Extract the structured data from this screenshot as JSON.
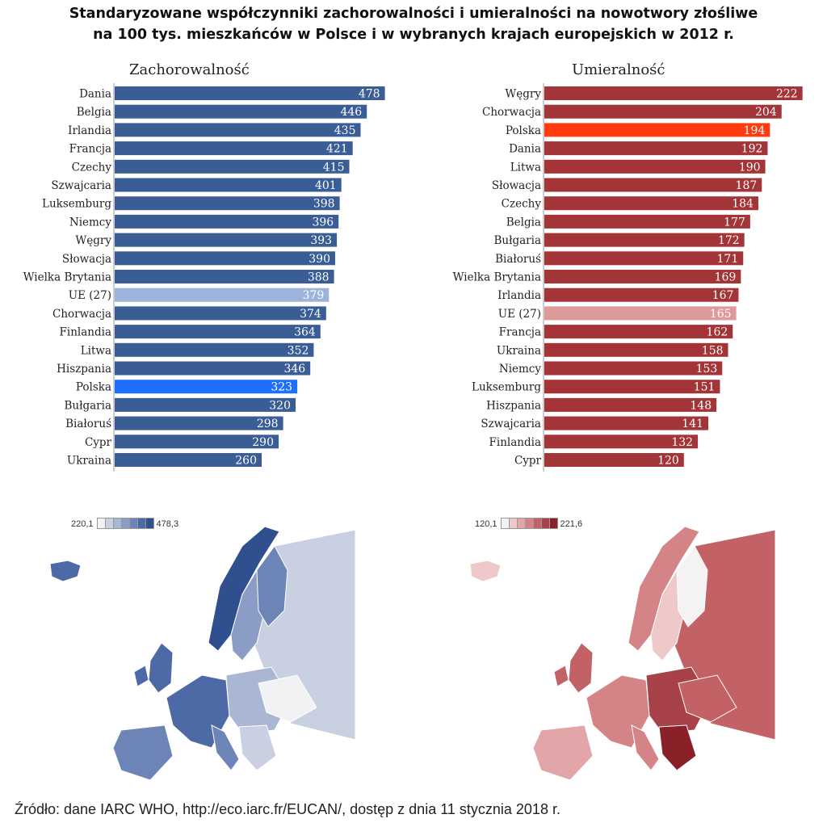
{
  "title": {
    "line1": "Standaryzowane  współczynniki zachorowalności i umieralności na nowotwory złośliwe",
    "line2": "na 100 tys. mieszkańców w Polsce  i w wybranych krajach europejskich w 2012 r."
  },
  "colors": {
    "incidence_bar": "#3a5d96",
    "incidence_highlight_pl": "#1f6fff",
    "incidence_highlight_eu": "#9db4da",
    "mortality_bar": "#a33538",
    "mortality_highlight_pl": "#ff3b0f",
    "mortality_highlight_eu": "#dd9a9b"
  },
  "chart_data": [
    {
      "type": "bar",
      "orientation": "horizontal",
      "title": "Zachorowalność",
      "categories": [
        "Dania",
        "Belgia",
        "Irlandia",
        "Francja",
        "Czechy",
        "Szwajcaria",
        "Luksemburg",
        "Niemcy",
        "Węgry",
        "Słowacja",
        "Wielka Brytania",
        "UE (27)",
        "Chorwacja",
        "Finlandia",
        "Litwa",
        "Hiszpania",
        "Polska",
        "Bułgaria",
        "Białoruś",
        "Cypr",
        "Ukraina"
      ],
      "values": [
        478,
        446,
        435,
        421,
        415,
        401,
        398,
        396,
        393,
        390,
        388,
        379,
        374,
        364,
        352,
        346,
        323,
        320,
        298,
        290,
        260
      ],
      "highlight": {
        "Polska": "incidence_highlight_pl",
        "UE (27)": "incidence_highlight_eu"
      },
      "data_labels": true
    },
    {
      "type": "bar",
      "orientation": "horizontal",
      "title": "Umieralność",
      "categories": [
        "Węgry",
        "Chorwacja",
        "Polska",
        "Dania",
        "Litwa",
        "Słowacja",
        "Czechy",
        "Belgia",
        "Bułgaria",
        "Białoruś",
        "Wielka Brytania",
        "Irlandia",
        "UE (27)",
        "Francja",
        "Ukraina",
        "Niemcy",
        "Luksemburg",
        "Hiszpania",
        "Szwajcaria",
        "Finlandia",
        "Cypr"
      ],
      "values": [
        222,
        204,
        194,
        192,
        190,
        187,
        184,
        177,
        172,
        171,
        169,
        167,
        165,
        162,
        158,
        153,
        151,
        148,
        141,
        132,
        120
      ],
      "highlight": {
        "Polska": "mortality_highlight_pl",
        "UE (27)": "mortality_highlight_eu"
      },
      "data_labels": true
    }
  ],
  "maps": {
    "incidence": {
      "legend_min": "220,1",
      "legend_max": "478,3",
      "scale": [
        "#f2f2f4",
        "#c9d0e2",
        "#a9b6d4",
        "#8b9dc6",
        "#6d84b7",
        "#4e6aa6",
        "#2f4f8f"
      ]
    },
    "mortality": {
      "legend_min": "120,1",
      "legend_max": "221,6",
      "scale": [
        "#f4f2f2",
        "#efc9c9",
        "#e3a6a8",
        "#d48487",
        "#c26266",
        "#a8424a",
        "#8a2129"
      ]
    }
  },
  "source": "Źródło: dane IARC WHO, http://eco.iarc.fr/EUCAN/, dostęp z dnia 11 stycznia 2018 r."
}
